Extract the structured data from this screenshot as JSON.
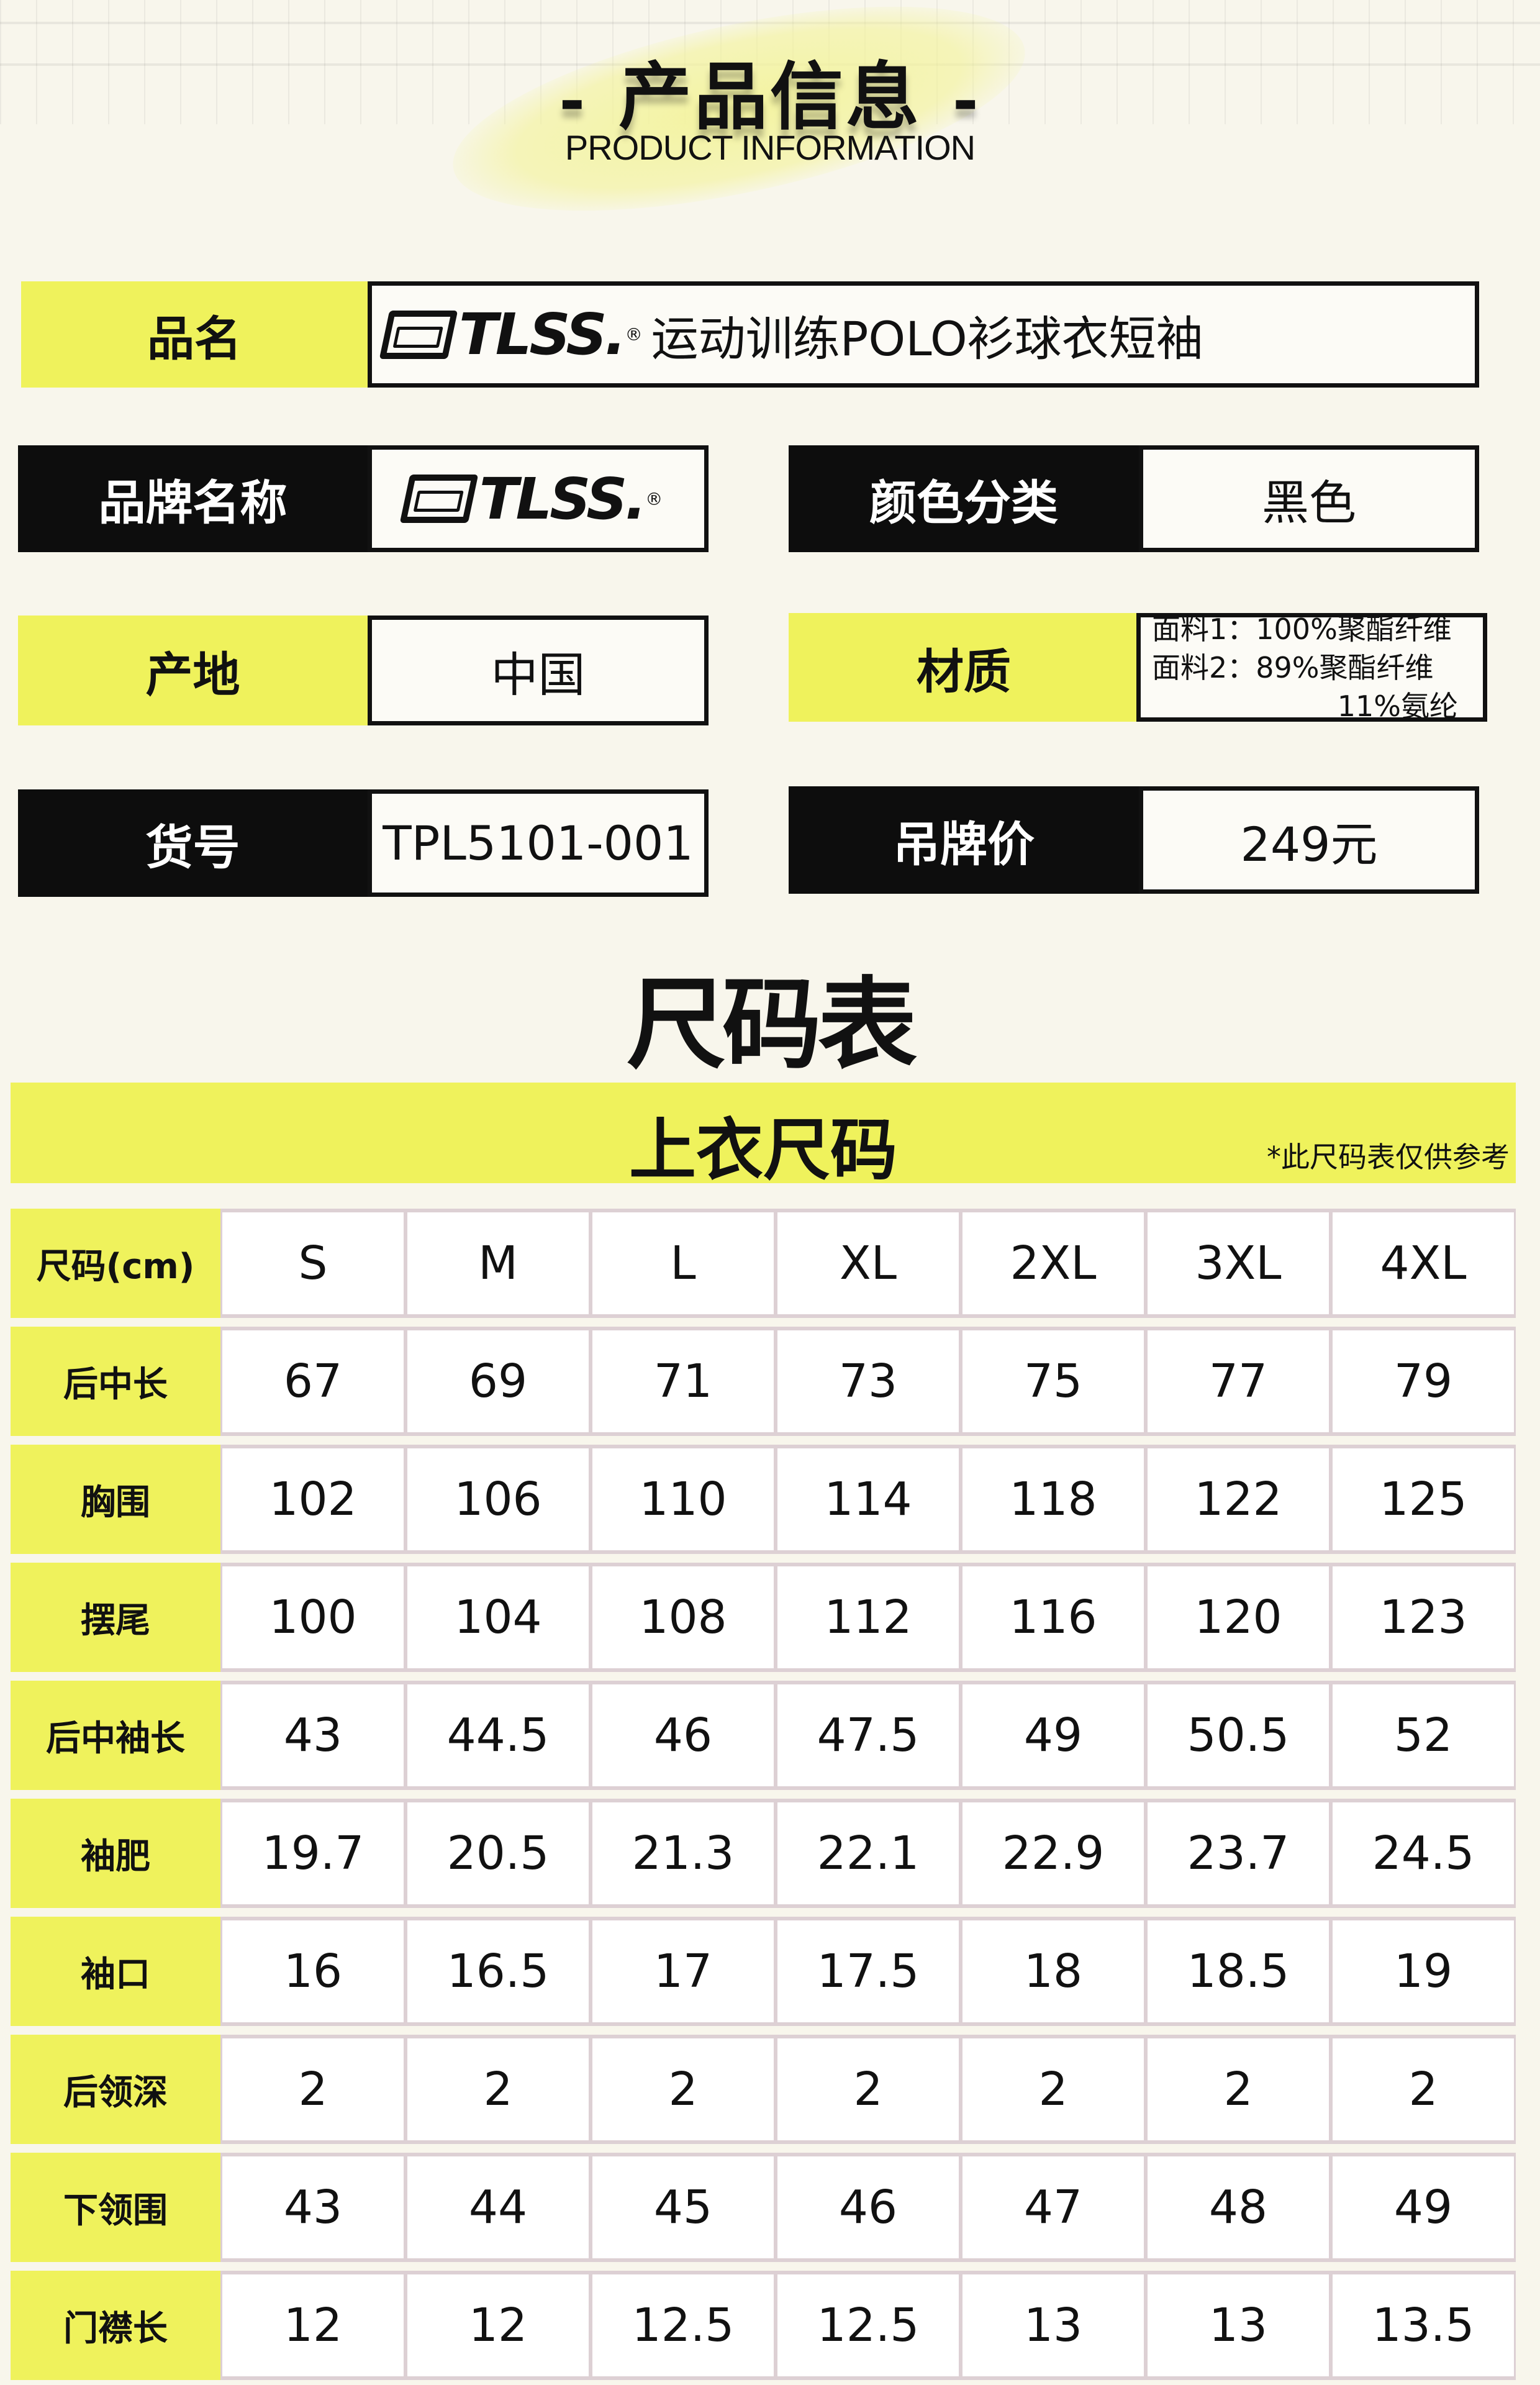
{
  "header": {
    "title": "产品信息",
    "subtitle": "PRODUCT INFORMATION",
    "dash": "-"
  },
  "info": {
    "product_name": {
      "label": "品名",
      "brand": "TLSS.",
      "value": "运动训练POLO衫球衣短袖"
    },
    "brand": {
      "label": "品牌名称",
      "value": "TLSS."
    },
    "color": {
      "label": "颜色分类",
      "value": "黑色"
    },
    "origin": {
      "label": "产地",
      "value": "中国"
    },
    "material": {
      "label": "材质",
      "line1": "面料1：100%聚酯纤维",
      "line2": "面料2：89%聚酯纤维",
      "line3": "11%氨纶"
    },
    "sku": {
      "label": "货号",
      "value": "TPL5101-001"
    },
    "price": {
      "label": "吊牌价",
      "value": "249元"
    }
  },
  "size_chart": {
    "title": "尺码表",
    "section": "上衣尺码",
    "note": "*此尺码表仅供参考",
    "header": "尺码(cm)",
    "sizes": [
      "S",
      "M",
      "L",
      "XL",
      "2XL",
      "3XL",
      "4XL"
    ],
    "rows": [
      {
        "name": "后中长",
        "values": [
          "67",
          "69",
          "71",
          "73",
          "75",
          "77",
          "79"
        ]
      },
      {
        "name": "胸围",
        "values": [
          "102",
          "106",
          "110",
          "114",
          "118",
          "122",
          "125"
        ]
      },
      {
        "name": "摆尾",
        "values": [
          "100",
          "104",
          "108",
          "112",
          "116",
          "120",
          "123"
        ]
      },
      {
        "name": "后中袖长",
        "values": [
          "43",
          "44.5",
          "46",
          "47.5",
          "49",
          "50.5",
          "52"
        ]
      },
      {
        "name": "袖肥",
        "values": [
          "19.7",
          "20.5",
          "21.3",
          "22.1",
          "22.9",
          "23.7",
          "24.5"
        ]
      },
      {
        "name": "袖口",
        "values": [
          "16",
          "16.5",
          "17",
          "17.5",
          "18",
          "18.5",
          "19"
        ]
      },
      {
        "name": "后领深",
        "values": [
          "2",
          "2",
          "2",
          "2",
          "2",
          "2",
          "2"
        ]
      },
      {
        "name": "下领围",
        "values": [
          "43",
          "44",
          "45",
          "46",
          "47",
          "48",
          "49"
        ]
      },
      {
        "name": "门襟长",
        "values": [
          "12",
          "12",
          "12.5",
          "12.5",
          "13",
          "13",
          "13.5"
        ]
      }
    ]
  },
  "colors": {
    "accent": "#eff25c",
    "dark": "#0d0d0d",
    "background": "#f8f6ec",
    "cell_border": "#ddd0d4"
  }
}
